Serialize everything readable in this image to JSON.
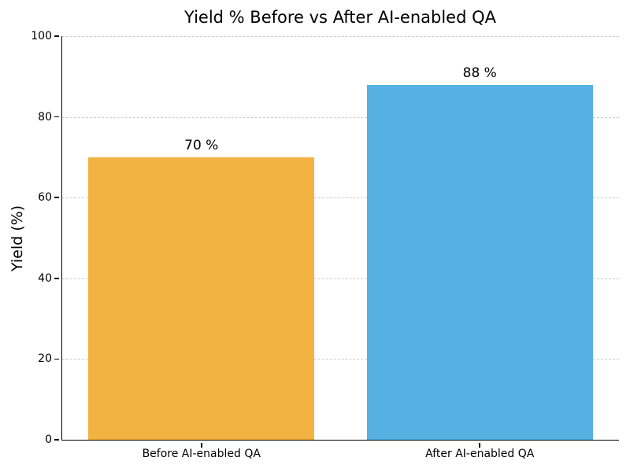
{
  "figure": {
    "background": "#ffffff"
  },
  "chart_data": {
    "type": "bar",
    "title": "Yield % Before vs After AI-enabled QA",
    "xlabel": "",
    "ylabel": "Yield (%)",
    "categories": [
      "Before AI-enabled QA",
      "After AI-enabled QA"
    ],
    "values": [
      70,
      88
    ],
    "value_labels": [
      "70 %",
      "88 %"
    ],
    "bar_colors": [
      "#F2B342",
      "#56B1E2"
    ],
    "ylim": [
      0,
      100
    ],
    "yticks": [
      0,
      20,
      40,
      60,
      80,
      100
    ],
    "grid": {
      "axis": "y",
      "style": "dashed",
      "color": "#cccccc"
    },
    "legend": "none",
    "axis_color": "#000000",
    "text_color": "#000000",
    "bar_width_frac": 0.406
  }
}
